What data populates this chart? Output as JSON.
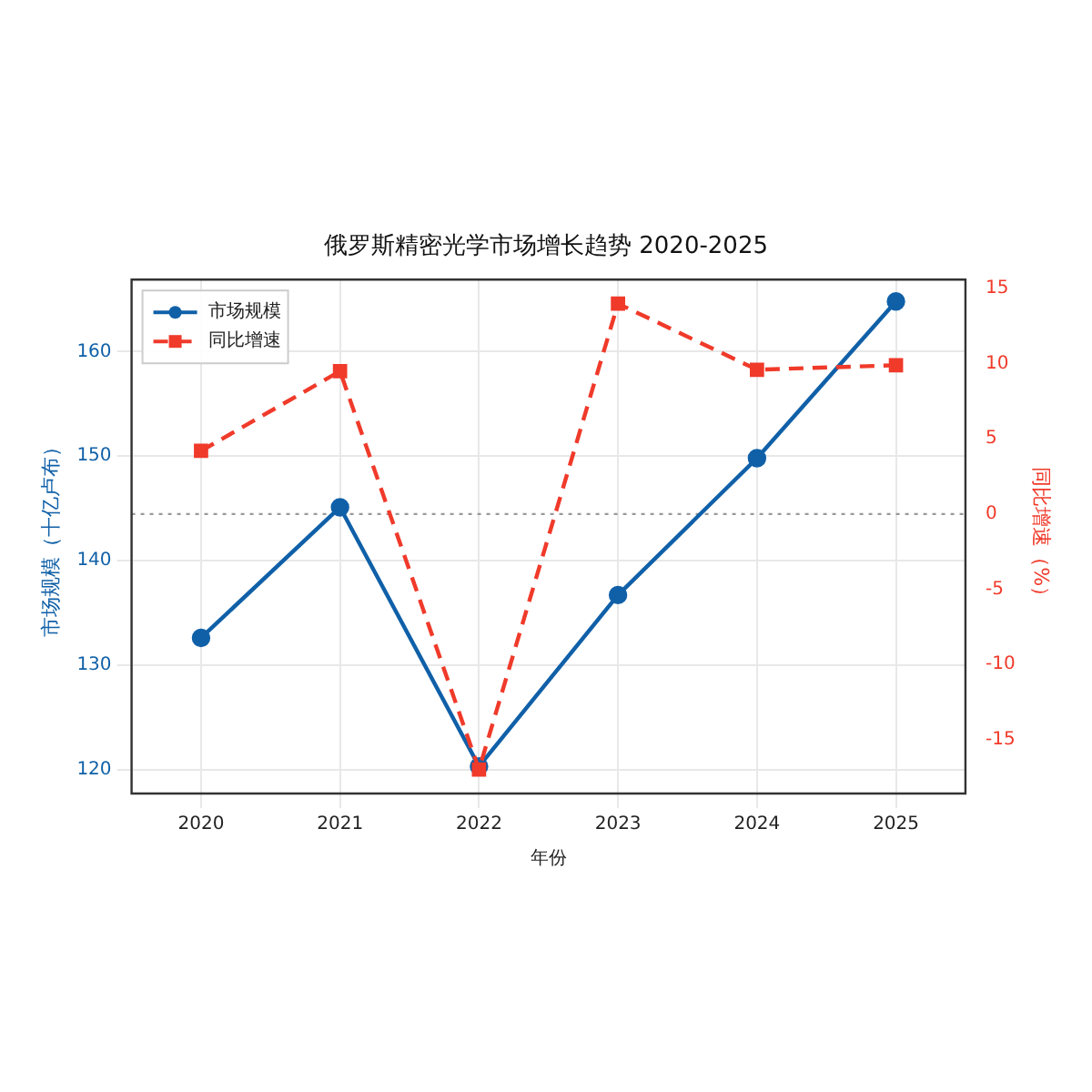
{
  "chart_data": {
    "type": "line",
    "title": "俄罗斯精密光学市场增长趋势 2020-2025",
    "xlabel": "年份",
    "ylabel": "市场规模（十亿卢布）",
    "y2label": "同比增速（%）",
    "categories": [
      "2020",
      "2021",
      "2022",
      "2023",
      "2024",
      "2025"
    ],
    "series": [
      {
        "name": "市场规模",
        "color": "#1060a8",
        "values": [
          132.6,
          145.1,
          120.3,
          136.7,
          149.8,
          164.8
        ],
        "marker": "circle",
        "line_style": "solid"
      },
      {
        "name": "同比增速",
        "color": "#f03a2a",
        "values": [
          4.2,
          9.5,
          -17.0,
          14.0,
          9.6,
          9.9
        ],
        "marker": "square",
        "line_style": "dashed",
        "axis": "y2"
      }
    ],
    "ylim": [
      117.7,
      166.9
    ],
    "yticks": [
      120,
      130,
      140,
      150,
      160
    ],
    "y2lim": [
      -18.6,
      15.6
    ],
    "y2ticks": [
      -15,
      -10,
      -5,
      0,
      5,
      10,
      15
    ],
    "ref_lines": [
      {
        "axis": "y2",
        "value": 0,
        "color": "#999999",
        "line_style": "dotted"
      }
    ],
    "grid": true,
    "legend": "top left"
  }
}
